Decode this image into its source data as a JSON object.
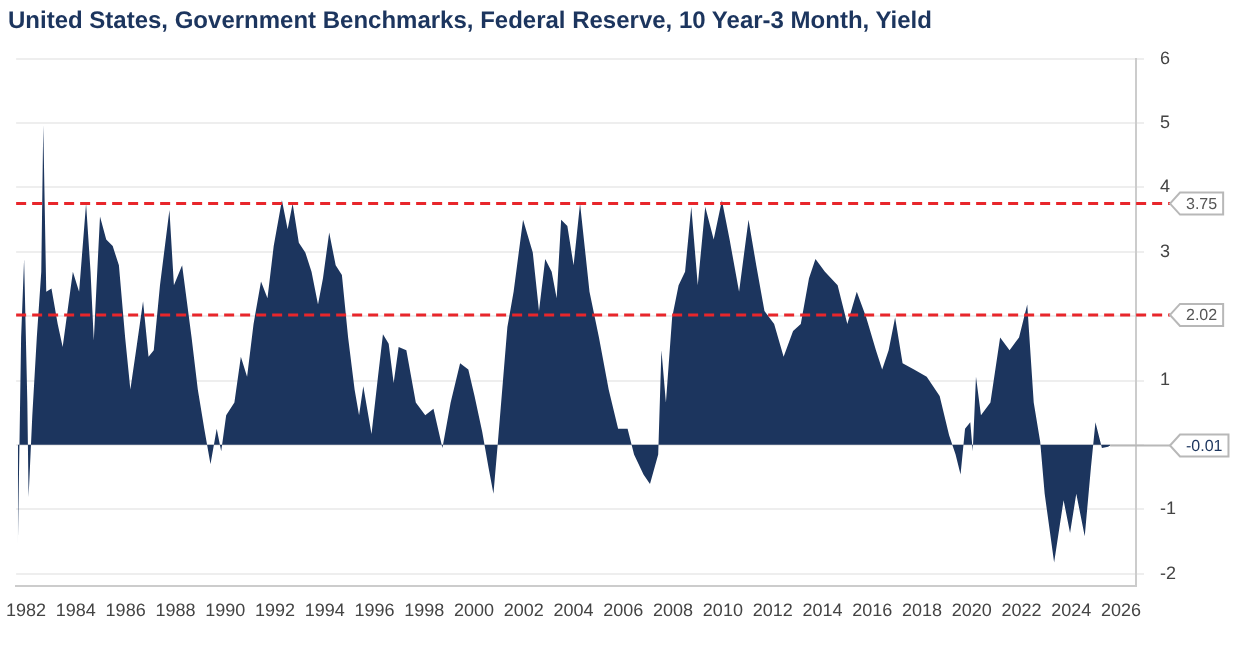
{
  "chart_data": {
    "type": "area",
    "title": "United States, Government Benchmarks, Federal Reserve, 10 Year-3 Month, Yield",
    "color": "#1c355e",
    "x": [
      1981.67,
      1981.8,
      1981.92,
      1982.05,
      1982.1,
      1982.25,
      1982.43,
      1982.61,
      1982.69,
      1982.81,
      1983.02,
      1983.27,
      1983.47,
      1983.7,
      1983.88,
      1984.13,
      1984.41,
      1984.59,
      1984.72,
      1984.97,
      1985.22,
      1985.48,
      1985.73,
      1985.98,
      1986.19,
      1986.42,
      1986.7,
      1986.92,
      1987.13,
      1987.38,
      1987.76,
      1987.94,
      1988.27,
      1988.65,
      1988.9,
      1989.16,
      1989.41,
      1989.66,
      1989.84,
      1990.04,
      1990.37,
      1990.63,
      1990.88,
      1991.14,
      1991.44,
      1991.7,
      1991.95,
      1992.28,
      1992.51,
      1992.71,
      1992.96,
      1993.22,
      1993.47,
      1993.73,
      1993.93,
      1994.18,
      1994.44,
      1994.69,
      1994.94,
      1995.2,
      1995.38,
      1995.55,
      1995.88,
      1996.14,
      1996.34,
      1996.57,
      1996.77,
      1996.97,
      1997.28,
      1997.66,
      1998.04,
      1998.37,
      1998.73,
      1999.06,
      1999.44,
      1999.77,
      2000.02,
      2000.33,
      2000.58,
      2000.78,
      2000.96,
      2001.34,
      2001.59,
      2001.97,
      2002.36,
      2002.61,
      2002.86,
      2003.12,
      2003.32,
      2003.5,
      2003.75,
      2004.0,
      2004.26,
      2004.64,
      2005.02,
      2005.41,
      2005.79,
      2006.17,
      2006.43,
      2006.81,
      2007.07,
      2007.4,
      2007.53,
      2007.71,
      2007.96,
      2008.22,
      2008.48,
      2008.73,
      2008.99,
      2009.29,
      2009.63,
      2009.96,
      2010.27,
      2010.65,
      2011.03,
      2011.34,
      2011.67,
      2012.06,
      2012.44,
      2012.82,
      2013.13,
      2013.46,
      2013.72,
      2014.1,
      2014.61,
      2015.0,
      2015.38,
      2015.76,
      2016.15,
      2016.4,
      2016.66,
      2016.92,
      2017.22,
      2017.68,
      2018.19,
      2018.71,
      2019.09,
      2019.35,
      2019.55,
      2019.73,
      2019.94,
      2020.04,
      2020.17,
      2020.37,
      2020.75,
      2021.14,
      2021.52,
      2021.9,
      2022.23,
      2022.49,
      2022.75,
      2022.93,
      2023.31,
      2023.69,
      2023.95,
      2024.2,
      2024.54,
      2024.79,
      2024.97,
      2025.23,
      2025.48,
      2025.56
    ],
    "values": [
      -1.57,
      1.67,
      2.89,
      0.66,
      -0.81,
      0.46,
      1.67,
      2.69,
      4.97,
      2.38,
      2.43,
      1.88,
      1.52,
      2.18,
      2.69,
      2.38,
      3.75,
      2.69,
      1.62,
      3.55,
      3.19,
      3.09,
      2.79,
      1.67,
      0.86,
      1.47,
      2.23,
      1.37,
      1.47,
      2.48,
      3.65,
      2.48,
      2.79,
      1.67,
      0.86,
      0.25,
      -0.3,
      0.25,
      -0.1,
      0.46,
      0.66,
      1.37,
      1.06,
      1.88,
      2.54,
      2.28,
      3.09,
      3.8,
      3.35,
      3.75,
      3.14,
      2.99,
      2.69,
      2.18,
      2.59,
      3.3,
      2.79,
      2.64,
      1.67,
      0.86,
      0.46,
      0.91,
      0.17,
      1.06,
      1.72,
      1.57,
      0.96,
      1.52,
      1.47,
      0.66,
      0.46,
      0.56,
      -0.05,
      0.66,
      1.27,
      1.17,
      0.76,
      0.2,
      -0.35,
      -0.76,
      0.05,
      1.83,
      2.38,
      3.5,
      2.99,
      2.08,
      2.89,
      2.69,
      2.28,
      3.5,
      3.4,
      2.79,
      3.75,
      2.38,
      1.67,
      0.86,
      0.25,
      0.25,
      -0.15,
      -0.46,
      -0.61,
      -0.15,
      1.47,
      0.66,
      1.98,
      2.48,
      2.69,
      3.7,
      2.48,
      3.7,
      3.19,
      3.8,
      3.19,
      2.38,
      3.5,
      2.79,
      2.08,
      1.88,
      1.37,
      1.77,
      1.88,
      2.59,
      2.89,
      2.69,
      2.48,
      1.88,
      2.38,
      1.98,
      1.47,
      1.17,
      1.47,
      1.98,
      1.27,
      1.17,
      1.06,
      0.76,
      0.15,
      -0.15,
      -0.46,
      0.25,
      0.35,
      -0.1,
      1.06,
      0.46,
      0.66,
      1.67,
      1.47,
      1.67,
      2.18,
      0.66,
      0.05,
      -0.76,
      -1.83,
      -0.86,
      -1.37,
      -0.76,
      -1.42,
      -0.35,
      0.35,
      -0.05,
      -0.03,
      -0.01
    ],
    "xlim": [
      1981.6,
      2026.6
    ],
    "xticks": [
      1982,
      1984,
      1986,
      1988,
      1990,
      1992,
      1994,
      1996,
      1998,
      2000,
      2002,
      2004,
      2006,
      2008,
      2010,
      2012,
      2014,
      2016,
      2018,
      2020,
      2022,
      2024,
      2026
    ],
    "ylim": [
      -2.2,
      6
    ],
    "yticks": [
      -2,
      -1,
      {
        "value": 0,
        "label": null
      },
      1,
      {
        "value": 2,
        "label": null
      },
      3,
      4,
      5,
      6
    ],
    "grid": "y",
    "ref_lines": [
      {
        "axis": "y",
        "value": 3.75,
        "label": "3.75",
        "color": "#e8262b",
        "line_style": "dashed"
      },
      {
        "axis": "y",
        "value": 2.02,
        "label": "2.02",
        "color": "#e8262b",
        "line_style": "dashed"
      }
    ],
    "annotations": [
      {
        "text": "-0.01",
        "x": 2025.56,
        "y": -0.01
      }
    ]
  }
}
